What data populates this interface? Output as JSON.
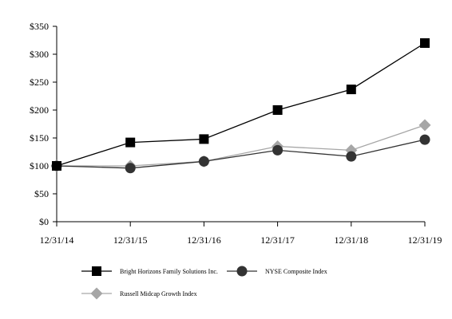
{
  "chart_data": {
    "type": "line",
    "title": "",
    "xlabel": "",
    "ylabel": "",
    "categories": [
      "12/31/14",
      "12/31/15",
      "12/31/16",
      "12/31/17",
      "12/31/18",
      "12/31/19"
    ],
    "y_ticks": [
      "$0",
      "$50",
      "$100",
      "$150",
      "$200",
      "$250",
      "$300",
      "$350"
    ],
    "ylim": [
      0,
      350
    ],
    "grid": false,
    "legend_position": "bottom",
    "series": [
      {
        "name": "Bright Horizons Family Solutions Inc.",
        "values": [
          100,
          142,
          148,
          200,
          237,
          320
        ],
        "color": "#000000",
        "marker": "square"
      },
      {
        "name": "NYSE Composite Index",
        "values": [
          100,
          96,
          108,
          128,
          117,
          147
        ],
        "color": "#333333",
        "marker": "circle"
      },
      {
        "name": "Russell Midcap Growth Index",
        "values": [
          100,
          100,
          108,
          135,
          128,
          173
        ],
        "color": "#a6a6a6",
        "marker": "diamond"
      }
    ]
  }
}
